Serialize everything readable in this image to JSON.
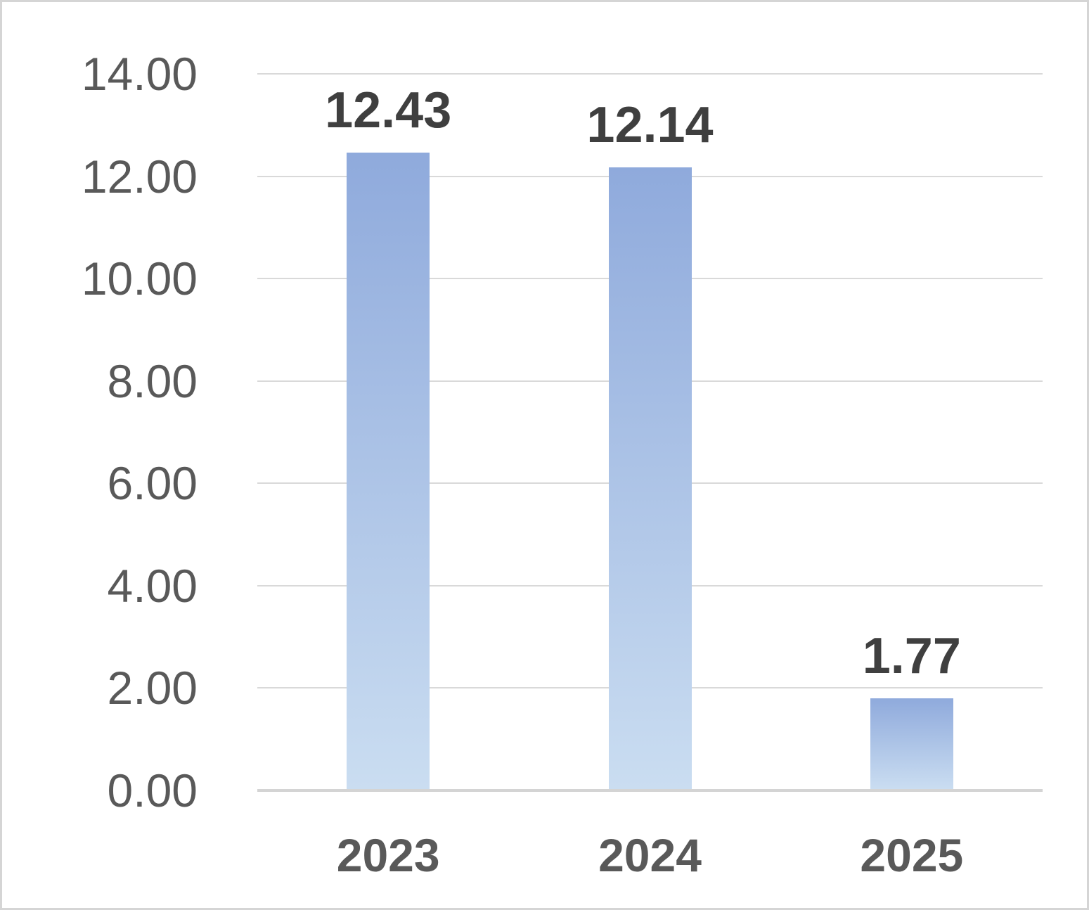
{
  "chart_data": {
    "type": "bar",
    "title": "",
    "xlabel": "",
    "ylabel": "",
    "categories": [
      "2023",
      "2024",
      "2025"
    ],
    "values": [
      12.43,
      12.14,
      1.77
    ],
    "data_labels": [
      "12.43",
      "12.14",
      "1.77"
    ],
    "ylim": [
      0,
      14
    ],
    "y_tick_step": 2,
    "y_ticks": [
      {
        "value": 0,
        "label": "0.00"
      },
      {
        "value": 2,
        "label": "2.00"
      },
      {
        "value": 4,
        "label": "4.00"
      },
      {
        "value": 6,
        "label": "6.00"
      },
      {
        "value": 8,
        "label": "8.00"
      },
      {
        "value": 10,
        "label": "10.00"
      },
      {
        "value": 12,
        "label": "12.00"
      },
      {
        "value": 14,
        "label": "14.00"
      }
    ],
    "grid": true,
    "legend": false
  },
  "style": {
    "background": "#FFFFFF",
    "border_color": "#D5D5D5",
    "gridline_color": "#D9D9D9",
    "axis_line_color": "#D4D4D4",
    "bar_gradient_top": "#8FAADC",
    "bar_gradient_bottom": "#CADDF1",
    "tick_label_color": "#595959",
    "category_label_color": "#595959",
    "data_label_color": "#3F3F3F"
  }
}
